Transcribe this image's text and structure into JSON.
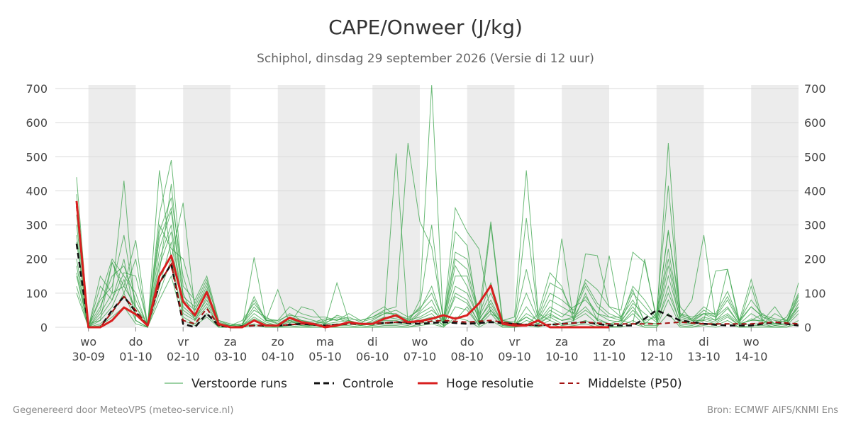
{
  "header": {
    "title": "CAPE/Onweer (J/kg)",
    "subtitle": "Schiphol, dinsdag 29 september 2026 (Versie di 12 uur)"
  },
  "footer": {
    "left": "Gegenereerd door MeteoVPS (meteo-service.nl)",
    "right": "Bron: ECMWF AIFS/KNMI Ens"
  },
  "colors": {
    "ensemble": "#3aa34a",
    "control": "#111111",
    "highres": "#d81f1f",
    "median": "#a31212",
    "weekend_shade": "#ececec",
    "grid": "#d9d9d9"
  },
  "legend": {
    "ensemble": "Verstoorde runs",
    "control": "Controle",
    "highres": "Hoge resolutie",
    "median": "Middelste (P50)"
  },
  "chart_data": {
    "type": "line",
    "ylim": [
      0,
      700
    ],
    "yticks": [
      0,
      100,
      200,
      300,
      400,
      500,
      600,
      700
    ],
    "x_unit": "days since 29-09 00:00",
    "xlim": [
      0.75,
      16.0
    ],
    "x_tick_labels": [
      {
        "day": "wo",
        "date": "30-09"
      },
      {
        "day": "do",
        "date": "01-10"
      },
      {
        "day": "vr",
        "date": "02-10"
      },
      {
        "day": "za",
        "date": "03-10"
      },
      {
        "day": "zo",
        "date": "04-10"
      },
      {
        "day": "ma",
        "date": "05-10"
      },
      {
        "day": "di",
        "date": "06-10"
      },
      {
        "day": "wo",
        "date": "07-10"
      },
      {
        "day": "do",
        "date": "08-10"
      },
      {
        "day": "vr",
        "date": "09-10"
      },
      {
        "day": "za",
        "date": "10-10"
      },
      {
        "day": "zo",
        "date": "11-10"
      },
      {
        "day": "ma",
        "date": "12-10"
      },
      {
        "day": "di",
        "date": "13-10"
      },
      {
        "day": "wo",
        "date": "14-10"
      }
    ],
    "highres": {
      "name": "Hoge resolutie",
      "x": [
        0.75,
        1.0,
        1.25,
        1.5,
        1.75,
        2.0,
        2.25,
        2.5,
        2.75,
        3.0,
        3.25,
        3.5,
        3.75,
        4.0,
        4.25,
        4.5,
        4.75,
        5.0,
        5.25,
        5.5,
        5.75,
        6.0,
        6.25,
        6.5,
        6.75,
        7.0,
        7.25,
        7.5,
        7.75,
        8.0,
        8.25,
        8.5,
        8.75,
        9.0,
        9.25,
        9.5,
        9.75,
        10.0,
        10.25,
        10.5,
        10.75,
        11.0,
        11.25,
        11.5,
        11.75,
        12.0
      ],
      "values": [
        370,
        0,
        0,
        20,
        58,
        38,
        5,
        150,
        210,
        75,
        35,
        103,
        10,
        0,
        0,
        20,
        5,
        5,
        28,
        15,
        10,
        0,
        5,
        15,
        10,
        10,
        25,
        35,
        15,
        18,
        25,
        35,
        25,
        35,
        70,
        122,
        10,
        5,
        5,
        20,
        0,
        0,
        0,
        0,
        0,
        0
      ]
    },
    "control": {
      "name": "Controle",
      "x": [
        0.75,
        1.0,
        1.25,
        1.5,
        1.75,
        2.0,
        2.25,
        2.5,
        2.75,
        3.0,
        3.25,
        3.5,
        3.75,
        4.0,
        4.5,
        5.0,
        5.5,
        6.0,
        6.5,
        7.0,
        7.5,
        8.0,
        8.5,
        9.0,
        9.5,
        10.0,
        10.5,
        11.0,
        11.5,
        12.0,
        12.5,
        12.75,
        13.0,
        13.5,
        14.0,
        14.5,
        15.0,
        15.5,
        16.0
      ],
      "values": [
        245,
        0,
        0,
        50,
        90,
        45,
        5,
        130,
        185,
        10,
        0,
        40,
        5,
        0,
        5,
        5,
        10,
        5,
        10,
        10,
        15,
        10,
        15,
        10,
        15,
        10,
        5,
        10,
        15,
        5,
        5,
        25,
        50,
        20,
        10,
        5,
        5,
        15,
        5
      ]
    },
    "median": {
      "name": "Middelste (P50)",
      "x": [
        0.75,
        1.0,
        1.25,
        1.5,
        1.75,
        2.0,
        2.25,
        2.5,
        2.75,
        3.0,
        3.25,
        3.5,
        3.75,
        4.0,
        4.5,
        5.0,
        5.5,
        6.0,
        6.5,
        7.0,
        7.5,
        8.0,
        8.5,
        9.0,
        9.5,
        10.0,
        10.5,
        11.0,
        11.5,
        12.0,
        12.5,
        13.0,
        13.5,
        14.0,
        14.5,
        15.0,
        15.5,
        16.0
      ],
      "values": [
        355,
        0,
        0,
        45,
        90,
        50,
        5,
        130,
        185,
        20,
        10,
        55,
        5,
        0,
        5,
        5,
        10,
        5,
        10,
        10,
        15,
        15,
        20,
        15,
        20,
        10,
        5,
        10,
        15,
        10,
        10,
        10,
        15,
        10,
        10,
        10,
        15,
        10
      ]
    },
    "ensemble": {
      "name": "Verstoorde runs",
      "x": [
        0.75,
        1.0,
        1.25,
        1.5,
        1.75,
        2.0,
        2.25,
        2.5,
        2.75,
        3.0,
        3.25,
        3.5,
        3.75,
        4.0,
        4.25,
        4.5,
        4.75,
        5.0,
        5.25,
        5.5,
        5.75,
        6.0,
        6.25,
        6.5,
        6.75,
        7.0,
        7.25,
        7.5,
        7.75,
        8.0,
        8.25,
        8.5,
        8.75,
        9.0,
        9.25,
        9.5,
        9.75,
        10.0,
        10.25,
        10.5,
        10.75,
        11.0,
        11.25,
        11.5,
        11.75,
        12.0,
        12.25,
        12.5,
        12.75,
        13.0,
        13.25,
        13.5,
        13.75,
        14.0,
        14.25,
        14.5,
        14.75,
        15.0,
        15.25,
        15.5,
        15.75,
        16.0
      ],
      "runs": [
        [
          440,
          0,
          150,
          100,
          430,
          20,
          0,
          460,
          200,
          365,
          50,
          120,
          0,
          0,
          0,
          205,
          20,
          110,
          10,
          60,
          50,
          10,
          130,
          20,
          10,
          5,
          30,
          510,
          10,
          80,
          710,
          5,
          20,
          60,
          5,
          300,
          10,
          5,
          5,
          40,
          20,
          260,
          20,
          100,
          20,
          210,
          20,
          10,
          200,
          20,
          540,
          30,
          80,
          270,
          20,
          170,
          20,
          140,
          20,
          60,
          10,
          130
        ],
        [
          390,
          10,
          20,
          190,
          120,
          255,
          5,
          330,
          490,
          120,
          80,
          150,
          20,
          10,
          5,
          90,
          20,
          20,
          60,
          40,
          30,
          30,
          20,
          40,
          20,
          30,
          50,
          60,
          540,
          310,
          235,
          20,
          350,
          280,
          230,
          40,
          20,
          30,
          460,
          40,
          160,
          120,
          20,
          215,
          210,
          60,
          50,
          220,
          190,
          30,
          280,
          60,
          20,
          20,
          165,
          170,
          10,
          120,
          10,
          40,
          20,
          60
        ],
        [
          300,
          5,
          80,
          120,
          270,
          60,
          10,
          260,
          350,
          100,
          20,
          90,
          10,
          5,
          10,
          50,
          30,
          10,
          20,
          10,
          5,
          10,
          15,
          20,
          5,
          20,
          40,
          40,
          20,
          60,
          300,
          10,
          280,
          240,
          10,
          50,
          10,
          5,
          320,
          30,
          130,
          110,
          40,
          140,
          110,
          60,
          30,
          110,
          10,
          40,
          415,
          40,
          30,
          40,
          40,
          105,
          20,
          60,
          30,
          10,
          20,
          80
        ],
        [
          250,
          0,
          50,
          190,
          100,
          200,
          0,
          160,
          420,
          90,
          60,
          130,
          20,
          5,
          5,
          80,
          20,
          10,
          30,
          20,
          10,
          20,
          30,
          20,
          10,
          40,
          60,
          30,
          20,
          30,
          50,
          20,
          220,
          200,
          40,
          310,
          20,
          10,
          30,
          10,
          50,
          30,
          60,
          80,
          40,
          30,
          30,
          80,
          20,
          30,
          285,
          40,
          20,
          40,
          30,
          60,
          10,
          20,
          40,
          10,
          30,
          100
        ],
        [
          180,
          0,
          30,
          80,
          200,
          20,
          0,
          200,
          300,
          60,
          30,
          80,
          10,
          0,
          5,
          30,
          10,
          5,
          20,
          5,
          5,
          5,
          10,
          10,
          5,
          10,
          20,
          20,
          10,
          40,
          60,
          10,
          180,
          120,
          20,
          80,
          10,
          5,
          40,
          20,
          40,
          20,
          30,
          60,
          20,
          10,
          20,
          60,
          10,
          10,
          180,
          20,
          10,
          30,
          20,
          40,
          10,
          20,
          20,
          5,
          10,
          60
        ],
        [
          150,
          0,
          20,
          60,
          140,
          40,
          0,
          120,
          250,
          40,
          20,
          60,
          5,
          0,
          0,
          20,
          5,
          0,
          10,
          5,
          0,
          0,
          5,
          5,
          0,
          5,
          10,
          10,
          5,
          20,
          30,
          5,
          100,
          80,
          10,
          60,
          5,
          0,
          20,
          10,
          30,
          10,
          20,
          40,
          10,
          5,
          10,
          40,
          5,
          5,
          120,
          10,
          5,
          20,
          10,
          30,
          5,
          10,
          10,
          0,
          5,
          40
        ],
        [
          120,
          0,
          10,
          40,
          100,
          20,
          0,
          100,
          200,
          30,
          10,
          40,
          0,
          0,
          0,
          10,
          0,
          0,
          5,
          0,
          0,
          0,
          0,
          0,
          0,
          0,
          5,
          5,
          0,
          10,
          20,
          0,
          60,
          50,
          5,
          40,
          0,
          0,
          10,
          5,
          20,
          5,
          10,
          20,
          5,
          0,
          5,
          20,
          0,
          0,
          80,
          5,
          0,
          10,
          5,
          20,
          0,
          5,
          5,
          0,
          0,
          20
        ],
        [
          200,
          5,
          60,
          150,
          180,
          80,
          5,
          280,
          380,
          150,
          40,
          100,
          15,
          5,
          10,
          60,
          20,
          15,
          40,
          20,
          15,
          25,
          20,
          30,
          15,
          25,
          40,
          50,
          30,
          50,
          120,
          15,
          150,
          150,
          30,
          100,
          15,
          10,
          100,
          20,
          80,
          60,
          40,
          120,
          60,
          30,
          20,
          100,
          60,
          20,
          230,
          30,
          20,
          50,
          30,
          80,
          15,
          60,
          30,
          20,
          15,
          90
        ],
        [
          330,
          0,
          90,
          200,
          150,
          100,
          0,
          230,
          340,
          80,
          50,
          110,
          5,
          0,
          5,
          40,
          15,
          5,
          25,
          10,
          10,
          15,
          25,
          15,
          10,
          15,
          30,
          25,
          15,
          45,
          80,
          10,
          120,
          100,
          25,
          70,
          10,
          5,
          60,
          15,
          60,
          40,
          30,
          90,
          40,
          20,
          15,
          70,
          40,
          15,
          150,
          25,
          15,
          40,
          20,
          55,
          10,
          40,
          20,
          10,
          10,
          70
        ],
        [
          100,
          0,
          5,
          30,
          60,
          10,
          0,
          80,
          150,
          20,
          5,
          30,
          0,
          0,
          0,
          5,
          0,
          0,
          0,
          0,
          0,
          0,
          0,
          0,
          0,
          0,
          0,
          0,
          0,
          5,
          10,
          0,
          30,
          20,
          0,
          20,
          0,
          0,
          5,
          0,
          10,
          0,
          5,
          10,
          0,
          0,
          0,
          10,
          0,
          0,
          40,
          0,
          0,
          5,
          0,
          10,
          0,
          0,
          0,
          0,
          0,
          10
        ],
        [
          270,
          0,
          120,
          80,
          160,
          150,
          10,
          300,
          230,
          200,
          70,
          140,
          10,
          5,
          20,
          70,
          25,
          20,
          35,
          30,
          20,
          10,
          35,
          25,
          20,
          30,
          45,
          35,
          25,
          55,
          100,
          20,
          200,
          170,
          35,
          130,
          20,
          15,
          170,
          25,
          100,
          80,
          50,
          130,
          70,
          40,
          25,
          120,
          80,
          25,
          200,
          35,
          25,
          60,
          35,
          90,
          20,
          80,
          35,
          25,
          20,
          95
        ],
        [
          160,
          0,
          40,
          100,
          120,
          60,
          0,
          180,
          280,
          50,
          25,
          70,
          5,
          0,
          5,
          25,
          10,
          5,
          15,
          10,
          5,
          5,
          10,
          10,
          5,
          10,
          15,
          15,
          10,
          25,
          40,
          5,
          90,
          70,
          15,
          50,
          5,
          5,
          30,
          10,
          35,
          20,
          25,
          50,
          25,
          10,
          10,
          50,
          15,
          10,
          100,
          15,
          10,
          25,
          15,
          35,
          5,
          25,
          15,
          5,
          10,
          50
        ]
      ]
    }
  }
}
